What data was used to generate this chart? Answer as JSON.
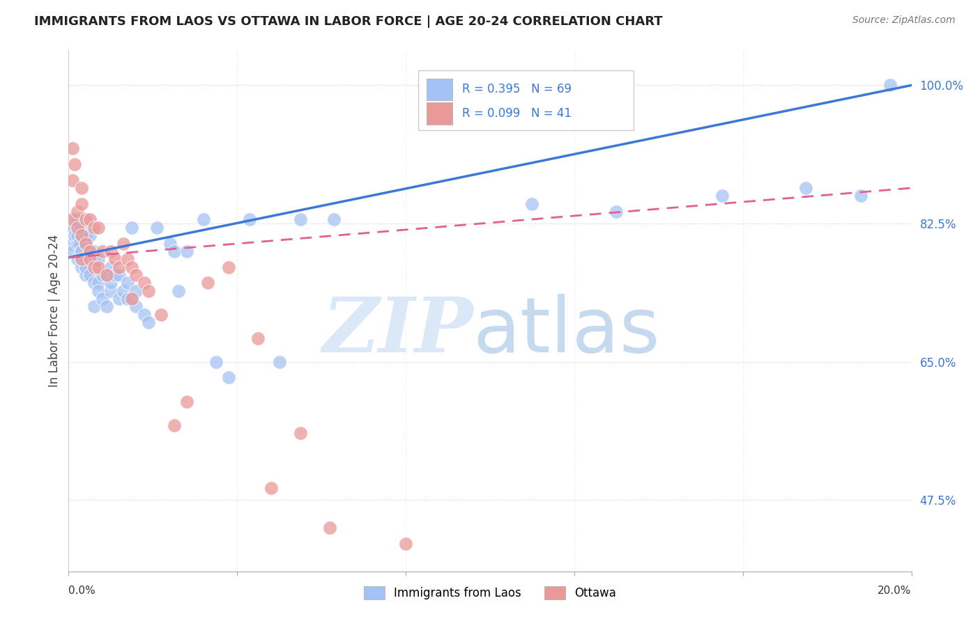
{
  "title": "IMMIGRANTS FROM LAOS VS OTTAWA IN LABOR FORCE | AGE 20-24 CORRELATION CHART",
  "source": "Source: ZipAtlas.com",
  "ylabel": "In Labor Force | Age 20-24",
  "xmin": 0.0,
  "xmax": 0.2,
  "ymin": 0.385,
  "ymax": 1.045,
  "ytick_positions": [
    0.475,
    0.65,
    0.825,
    1.0
  ],
  "ytick_labels": [
    "47.5%",
    "65.0%",
    "82.5%",
    "100.0%"
  ],
  "R_laos": 0.395,
  "N_laos": 69,
  "R_ottawa": 0.099,
  "N_ottawa": 41,
  "color_laos": "#a4c2f4",
  "color_ottawa": "#ea9999",
  "trendline_laos_color": "#3c78d8",
  "trendline_ottawa_color": "#e06090",
  "laos_trendline_y0": 0.782,
  "laos_trendline_y1": 1.0,
  "ottawa_trendline_y0": 0.782,
  "ottawa_trendline_y1": 0.87,
  "laos_x": [
    0.0008,
    0.001,
    0.001,
    0.0015,
    0.0015,
    0.002,
    0.002,
    0.002,
    0.002,
    0.0025,
    0.003,
    0.003,
    0.003,
    0.003,
    0.003,
    0.003,
    0.004,
    0.004,
    0.004,
    0.004,
    0.004,
    0.005,
    0.005,
    0.005,
    0.005,
    0.006,
    0.006,
    0.006,
    0.006,
    0.007,
    0.007,
    0.007,
    0.008,
    0.008,
    0.009,
    0.009,
    0.01,
    0.01,
    0.01,
    0.011,
    0.012,
    0.012,
    0.013,
    0.014,
    0.014,
    0.015,
    0.015,
    0.016,
    0.016,
    0.018,
    0.019,
    0.021,
    0.024,
    0.025,
    0.026,
    0.028,
    0.032,
    0.035,
    0.038,
    0.043,
    0.05,
    0.055,
    0.063,
    0.11,
    0.13,
    0.155,
    0.175,
    0.188,
    0.195
  ],
  "laos_y": [
    0.8,
    0.79,
    0.82,
    0.81,
    0.83,
    0.78,
    0.8,
    0.81,
    0.83,
    0.8,
    0.77,
    0.78,
    0.79,
    0.81,
    0.82,
    0.79,
    0.76,
    0.78,
    0.8,
    0.81,
    0.77,
    0.76,
    0.79,
    0.81,
    0.79,
    0.72,
    0.75,
    0.78,
    0.79,
    0.75,
    0.78,
    0.74,
    0.73,
    0.76,
    0.72,
    0.76,
    0.74,
    0.75,
    0.77,
    0.76,
    0.73,
    0.76,
    0.74,
    0.73,
    0.75,
    0.73,
    0.82,
    0.72,
    0.74,
    0.71,
    0.7,
    0.82,
    0.8,
    0.79,
    0.74,
    0.79,
    0.83,
    0.65,
    0.63,
    0.83,
    0.65,
    0.83,
    0.83,
    0.85,
    0.84,
    0.86,
    0.87,
    0.86,
    1.0
  ],
  "ottawa_x": [
    0.0008,
    0.001,
    0.001,
    0.0015,
    0.002,
    0.002,
    0.003,
    0.003,
    0.003,
    0.003,
    0.004,
    0.004,
    0.005,
    0.005,
    0.005,
    0.006,
    0.006,
    0.007,
    0.007,
    0.008,
    0.009,
    0.01,
    0.011,
    0.012,
    0.013,
    0.014,
    0.015,
    0.015,
    0.016,
    0.018,
    0.019,
    0.022,
    0.025,
    0.028,
    0.033,
    0.038,
    0.045,
    0.048,
    0.055,
    0.062,
    0.08
  ],
  "ottawa_y": [
    0.83,
    0.88,
    0.92,
    0.9,
    0.82,
    0.84,
    0.81,
    0.85,
    0.87,
    0.78,
    0.8,
    0.83,
    0.79,
    0.83,
    0.78,
    0.77,
    0.82,
    0.77,
    0.82,
    0.79,
    0.76,
    0.79,
    0.78,
    0.77,
    0.8,
    0.78,
    0.73,
    0.77,
    0.76,
    0.75,
    0.74,
    0.71,
    0.57,
    0.6,
    0.75,
    0.77,
    0.68,
    0.49,
    0.56,
    0.44,
    0.42
  ]
}
